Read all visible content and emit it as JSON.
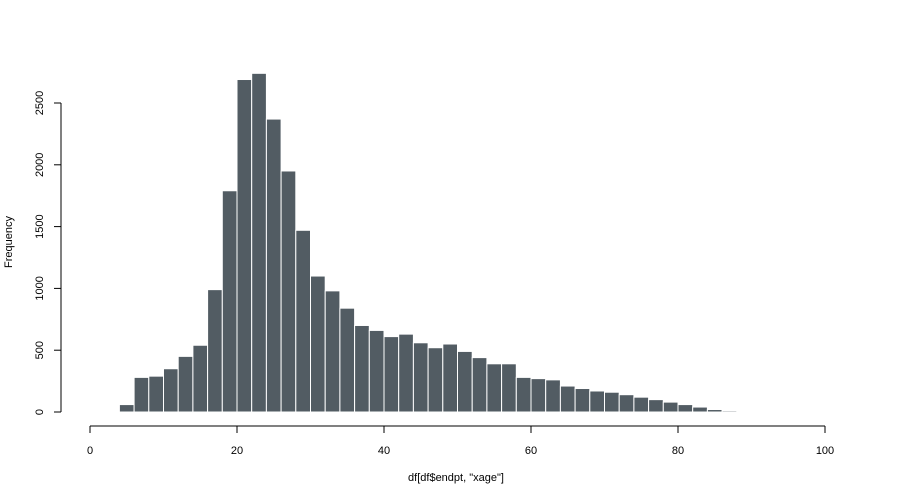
{
  "chart_data": {
    "type": "bar",
    "title": "",
    "xlabel": "df[df$endpt, \"xage\"]",
    "ylabel": "Frequency",
    "xlim": [
      0,
      100
    ],
    "ylim": [
      0,
      2500
    ],
    "x_ticks": [
      0,
      20,
      40,
      60,
      80,
      100
    ],
    "y_ticks": [
      0,
      500,
      1000,
      1500,
      2000,
      2500
    ],
    "bin_width": 2,
    "bin_starts": [
      4,
      6,
      8,
      10,
      12,
      14,
      16,
      18,
      20,
      22,
      24,
      26,
      28,
      30,
      32,
      34,
      36,
      38,
      40,
      42,
      44,
      46,
      48,
      50,
      52,
      54,
      56,
      58,
      60,
      62,
      64,
      66,
      68,
      70,
      72,
      74,
      76,
      78,
      80,
      82,
      84,
      86
    ],
    "values": [
      60,
      280,
      290,
      350,
      450,
      540,
      990,
      1790,
      2690,
      2740,
      2370,
      1950,
      1470,
      1100,
      980,
      840,
      700,
      660,
      610,
      630,
      560,
      520,
      550,
      490,
      440,
      390,
      390,
      280,
      270,
      260,
      210,
      190,
      170,
      160,
      140,
      120,
      100,
      80,
      60,
      40,
      20,
      10
    ],
    "bar_color": "#525c63",
    "grid": false
  }
}
